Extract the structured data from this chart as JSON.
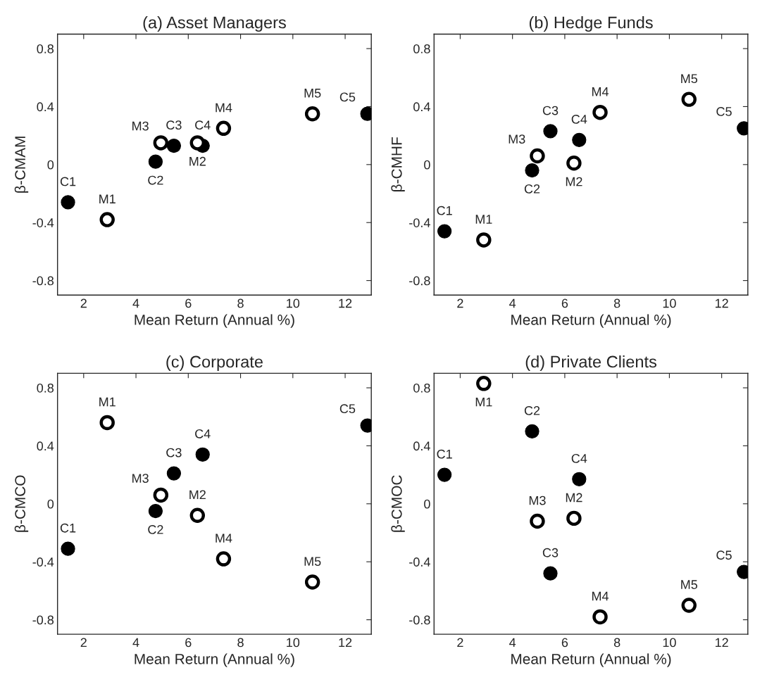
{
  "chart_data": [
    {
      "type": "scatter",
      "title": "(a) Asset Managers",
      "xlabel": "Mean Return (Annual %)",
      "ylabel": "β-CMAM",
      "xlim": [
        1,
        13
      ],
      "xticks": [
        2,
        4,
        6,
        8,
        10,
        12
      ],
      "ylim": [
        -0.9,
        0.9
      ],
      "yticks": [
        -0.8,
        -0.4,
        0,
        0.4,
        0.8
      ],
      "grid": false,
      "marker": "circle",
      "series": [
        {
          "color": "#000000",
          "x": [
            1.4,
            4.75,
            5.45,
            6.55,
            12.85
          ],
          "values": [
            -0.26,
            0.02,
            0.13,
            0.13,
            0.35
          ],
          "value_labels": [
            "C1",
            "C2",
            "C3",
            "C4",
            "C5"
          ]
        },
        {
          "color": "#000000",
          "x": [
            2.9,
            6.35,
            4.95,
            7.35,
            10.75
          ],
          "values": [
            -0.38,
            0.15,
            0.15,
            0.25,
            0.35
          ],
          "value_labels": [
            "M1",
            "M2",
            "M3",
            "M4",
            "M5"
          ]
        }
      ]
    },
    {
      "type": "scatter",
      "title": "(b) Hedge Funds",
      "xlabel": "Mean Return (Annual %)",
      "ylabel": "β-CMHF",
      "xlim": [
        1,
        13
      ],
      "xticks": [
        2,
        4,
        6,
        8,
        10,
        12
      ],
      "ylim": [
        -0.9,
        0.9
      ],
      "yticks": [
        -0.8,
        -0.4,
        0,
        0.4,
        0.8
      ],
      "grid": false,
      "marker": "circle",
      "series": [
        {
          "color": "#000000",
          "x": [
            1.4,
            4.75,
            5.45,
            6.55,
            12.85
          ],
          "values": [
            -0.46,
            -0.04,
            0.23,
            0.17,
            0.25
          ],
          "value_labels": [
            "C1",
            "C2",
            "C3",
            "C4",
            "C5"
          ]
        },
        {
          "color": "#000000",
          "x": [
            2.9,
            6.35,
            4.95,
            7.35,
            10.75
          ],
          "values": [
            -0.52,
            0.01,
            0.06,
            0.36,
            0.45
          ],
          "value_labels": [
            "M1",
            "M2",
            "M3",
            "M4",
            "M5"
          ]
        }
      ]
    },
    {
      "type": "scatter",
      "title": "(c) Corporate",
      "xlabel": "Mean Return (Annual %)",
      "ylabel": "β-CMCO",
      "xlim": [
        1,
        13
      ],
      "xticks": [
        2,
        4,
        6,
        8,
        10,
        12
      ],
      "ylim": [
        -0.9,
        0.9
      ],
      "yticks": [
        -0.8,
        -0.4,
        0,
        0.4,
        0.8
      ],
      "grid": false,
      "marker": "circle",
      "series": [
        {
          "color": "#000000",
          "x": [
            1.4,
            4.75,
            5.45,
            6.55,
            12.85
          ],
          "values": [
            -0.31,
            -0.05,
            0.21,
            0.34,
            0.54
          ],
          "value_labels": [
            "C1",
            "C2",
            "C3",
            "C4",
            "C5"
          ]
        },
        {
          "color": "#000000",
          "x": [
            2.9,
            6.35,
            4.95,
            7.35,
            10.75
          ],
          "values": [
            0.56,
            -0.08,
            0.06,
            -0.38,
            -0.54
          ],
          "value_labels": [
            "M1",
            "M2",
            "M3",
            "M4",
            "M5"
          ]
        }
      ]
    },
    {
      "type": "scatter",
      "title": "(d) Private Clients",
      "xlabel": "Mean Return (Annual %)",
      "ylabel": "β-CMOC",
      "xlim": [
        1,
        13
      ],
      "xticks": [
        2,
        4,
        6,
        8,
        10,
        12
      ],
      "ylim": [
        -0.9,
        0.9
      ],
      "yticks": [
        -0.8,
        -0.4,
        0,
        0.4,
        0.8
      ],
      "grid": false,
      "marker": "circle",
      "series": [
        {
          "color": "#000000",
          "x": [
            1.4,
            4.75,
            5.45,
            6.55,
            12.85
          ],
          "values": [
            0.2,
            0.5,
            -0.48,
            0.17,
            -0.47
          ],
          "value_labels": [
            "C1",
            "C2",
            "C3",
            "C4",
            "C5"
          ]
        },
        {
          "color": "#000000",
          "x": [
            2.9,
            6.35,
            4.95,
            7.35,
            10.75
          ],
          "values": [
            0.83,
            -0.1,
            -0.12,
            -0.78,
            -0.7
          ],
          "value_labels": [
            "M1",
            "M2",
            "M3",
            "M4",
            "M5"
          ]
        }
      ]
    }
  ]
}
